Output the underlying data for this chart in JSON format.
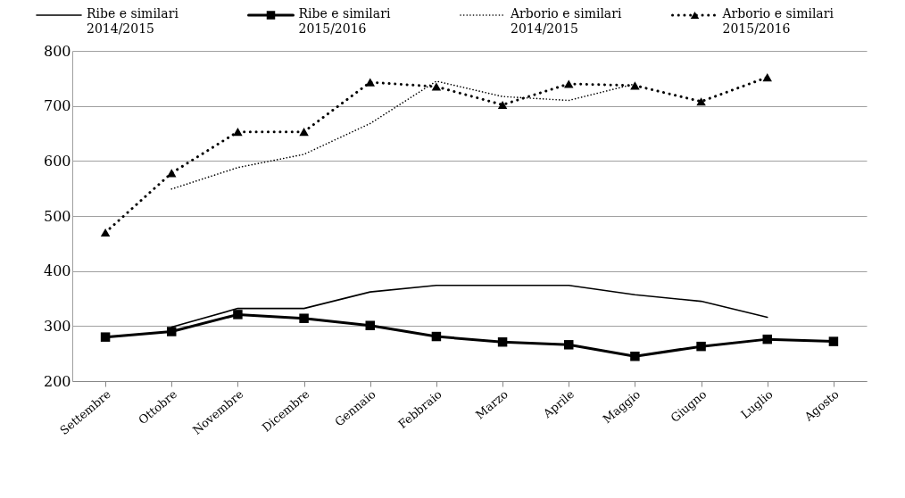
{
  "chart_data": {
    "type": "line",
    "categories": [
      "Settembre",
      "Ottobre",
      "Novembre",
      "Dicembre",
      "Gennaio",
      "Febbraio",
      "Marzo",
      "Aprile",
      "Maggio",
      "Giugno",
      "Luglio",
      "Agosto"
    ],
    "series": [
      {
        "name": "Ribe e similari 2014/2015",
        "color": "#000000",
        "line_style": "solid",
        "marker": "none",
        "values": [
          null,
          298,
          332,
          332,
          362,
          374,
          374,
          374,
          357,
          345,
          316,
          null
        ]
      },
      {
        "name": "Ribe e similari 2015/2016",
        "color": "#000000",
        "line_style": "solid",
        "marker": "square",
        "values": [
          280,
          290,
          321,
          314,
          301,
          281,
          271,
          266,
          245,
          263,
          276,
          272
        ]
      },
      {
        "name": "Arborio e similari 2014/2015",
        "color": "#000000",
        "line_style": "dotted",
        "marker": "none",
        "values": [
          null,
          549,
          588,
          612,
          668,
          745,
          717,
          710,
          740,
          null,
          null,
          null
        ]
      },
      {
        "name": "Arborio e similari 2015/2016",
        "color": "#000000",
        "line_style": "dotted",
        "marker": "triangle",
        "values": [
          470,
          578,
          653,
          653,
          743,
          735,
          702,
          740,
          737,
          708,
          752,
          null
        ]
      }
    ],
    "ylim": [
      200,
      800
    ],
    "yticks": [
      200,
      300,
      400,
      500,
      600,
      700,
      800
    ],
    "grid": "y",
    "legend": "top"
  }
}
